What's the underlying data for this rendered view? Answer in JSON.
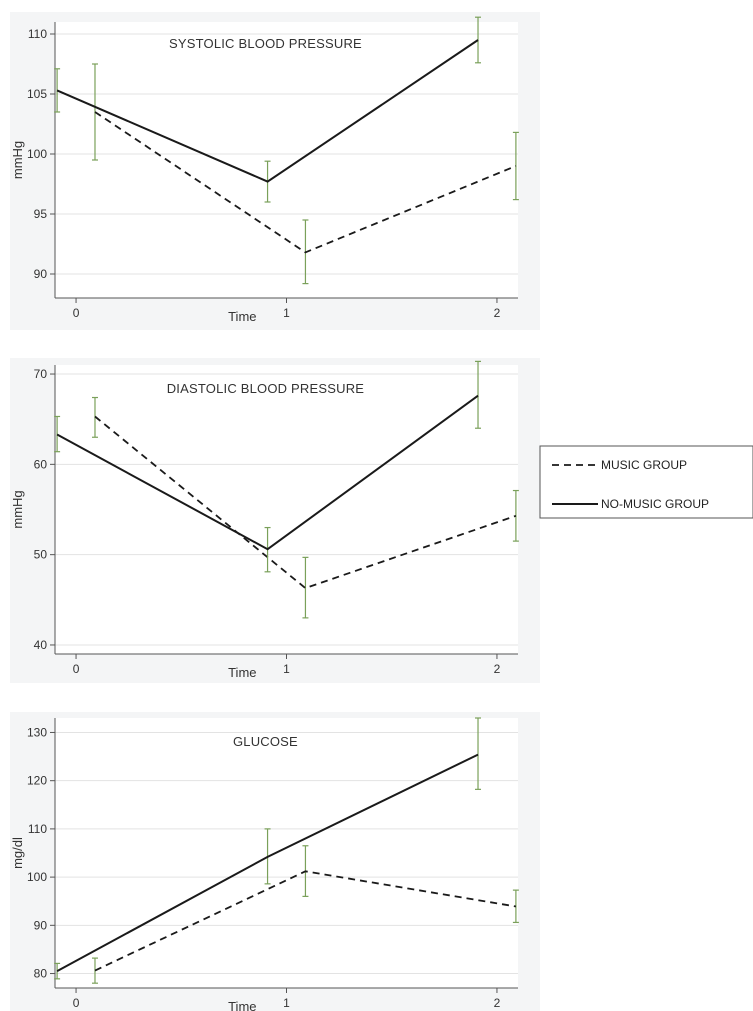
{
  "chart_data": [
    {
      "type": "line",
      "title": "SYSTOLIC BLOOD PRESSURE",
      "xlabel": "Time",
      "ylabel": "mmHg",
      "xlim": [
        -0.1,
        2.1
      ],
      "ylim": [
        88,
        111
      ],
      "xticks": [
        0,
        1,
        2
      ],
      "yticks": [
        90,
        95,
        100,
        105,
        110
      ],
      "grid": true,
      "series": [
        {
          "name": "MUSIC GROUP",
          "style": "dashed",
          "x": [
            0.09,
            1.09,
            2.09
          ],
          "values": [
            103.5,
            91.8,
            99.0
          ],
          "err_low": [
            99.5,
            89.2,
            96.2
          ],
          "err_high": [
            107.5,
            94.5,
            101.8
          ]
        },
        {
          "name": "NO-MUSIC GROUP",
          "style": "solid",
          "x": [
            -0.09,
            0.91,
            1.91
          ],
          "values": [
            105.3,
            97.7,
            109.5
          ],
          "err_low": [
            103.5,
            96.0,
            107.6
          ],
          "err_high": [
            107.1,
            99.4,
            111.4
          ]
        }
      ]
    },
    {
      "type": "line",
      "title": "DIASTOLIC BLOOD PRESSURE",
      "xlabel": "Time",
      "ylabel": "mmHg",
      "xlim": [
        -0.1,
        2.1
      ],
      "ylim": [
        39,
        71
      ],
      "xticks": [
        0,
        1,
        2
      ],
      "yticks": [
        40,
        50,
        60,
        70
      ],
      "grid": true,
      "series": [
        {
          "name": "MUSIC GROUP",
          "style": "dashed",
          "x": [
            0.09,
            1.09,
            2.09
          ],
          "values": [
            65.3,
            46.3,
            54.3
          ],
          "err_low": [
            63.0,
            43.0,
            51.5
          ],
          "err_high": [
            67.4,
            49.7,
            57.1
          ]
        },
        {
          "name": "NO-MUSIC GROUP",
          "style": "solid",
          "x": [
            -0.09,
            0.91,
            1.91
          ],
          "values": [
            63.3,
            50.6,
            67.6
          ],
          "err_low": [
            61.4,
            48.1,
            64.0
          ],
          "err_high": [
            65.3,
            53.0,
            71.4
          ]
        }
      ]
    },
    {
      "type": "line",
      "title": "GLUCOSE",
      "xlabel": "Time",
      "ylabel": "mg/dl",
      "xlim": [
        -0.1,
        2.1
      ],
      "ylim": [
        77,
        133
      ],
      "xticks": [
        0,
        1,
        2
      ],
      "yticks": [
        80,
        90,
        100,
        110,
        120,
        130
      ],
      "grid": true,
      "series": [
        {
          "name": "MUSIC GROUP",
          "style": "dashed",
          "x": [
            0.09,
            1.09,
            2.09
          ],
          "values": [
            80.6,
            101.2,
            93.9
          ],
          "err_low": [
            78.0,
            96.0,
            90.6
          ],
          "err_high": [
            83.2,
            106.5,
            97.3
          ]
        },
        {
          "name": "NO-MUSIC GROUP",
          "style": "solid",
          "x": [
            -0.09,
            0.91,
            1.91
          ],
          "values": [
            80.5,
            104.2,
            125.4
          ],
          "err_low": [
            78.9,
            98.6,
            118.2
          ],
          "err_high": [
            82.1,
            110.0,
            133.0
          ]
        }
      ]
    }
  ],
  "legend": {
    "position": "right",
    "items": [
      {
        "label": "MUSIC GROUP",
        "style": "dashed"
      },
      {
        "label": "NO-MUSIC GROUP",
        "style": "solid"
      }
    ]
  },
  "colors": {
    "panel_background": "#f4f5f6",
    "plot_background": "#ffffff",
    "line": "#1a1a1a",
    "error_bar": "#7aa05a",
    "grid": "#e3e3e3"
  }
}
